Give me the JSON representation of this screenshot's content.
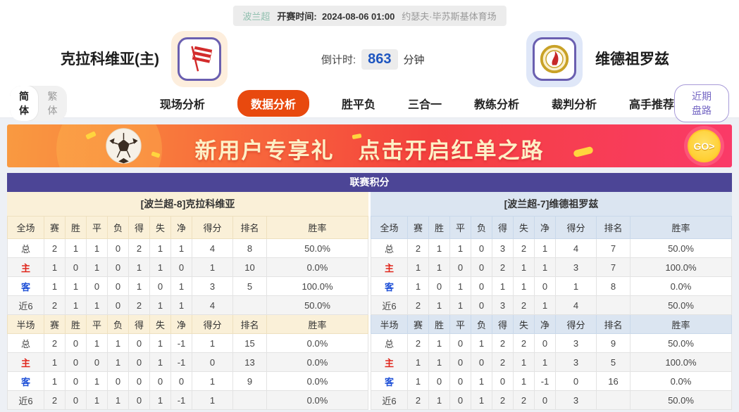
{
  "top_bar": {
    "league": "波兰超",
    "kickoff_label": "开赛时间:",
    "kickoff_time": "2024-08-06 01:00",
    "venue": "约瑟夫·毕苏斯基体育场"
  },
  "header": {
    "home_team": "克拉科维亚(主)",
    "away_team": "维德祖罗兹",
    "countdown_label": "倒计时:",
    "countdown_value": "863",
    "countdown_unit": "分钟"
  },
  "nav": {
    "lang": [
      "简体",
      "繁体"
    ],
    "tabs": [
      {
        "label": "现场分析",
        "active": false
      },
      {
        "label": "数据分析",
        "active": true
      },
      {
        "label": "胜平负",
        "active": false
      },
      {
        "label": "三合一",
        "active": false
      },
      {
        "label": "教练分析",
        "active": false
      },
      {
        "label": "裁判分析",
        "active": false
      },
      {
        "label": "高手推荐",
        "active": false
      }
    ],
    "recent_button": "近期盘路"
  },
  "banner": {
    "text1": "新用户专享礼",
    "text2": "点击开启红单之路",
    "go_label": "GO>"
  },
  "colors": {
    "accent_purple": "#4c4596",
    "active_tab_orange": "#e8490e",
    "home_header_bg": "#faf0d8",
    "away_header_bg": "#dbe5f1",
    "home_label_red": "#e0251b",
    "away_label_blue": "#1d4fd7",
    "countdown_blue": "#1d55c0"
  },
  "table": {
    "title": "联赛积分",
    "home": {
      "section_title": "[波兰超-8]克拉科维亚",
      "full_header": [
        "全场",
        "赛",
        "胜",
        "平",
        "负",
        "得",
        "失",
        "净",
        "得分",
        "排名",
        "胜率"
      ],
      "full_rows": [
        [
          "总",
          "2",
          "1",
          "1",
          "0",
          "2",
          "1",
          "1",
          "4",
          "8",
          "50.0%"
        ],
        [
          "主",
          "1",
          "0",
          "1",
          "0",
          "1",
          "1",
          "0",
          "1",
          "10",
          "0.0%"
        ],
        [
          "客",
          "1",
          "1",
          "0",
          "0",
          "1",
          "0",
          "1",
          "3",
          "5",
          "100.0%"
        ],
        [
          "近6",
          "2",
          "1",
          "1",
          "0",
          "2",
          "1",
          "1",
          "4",
          "",
          "50.0%"
        ]
      ],
      "half_header": [
        "半场",
        "赛",
        "胜",
        "平",
        "负",
        "得",
        "失",
        "净",
        "得分",
        "排名",
        "胜率"
      ],
      "half_rows": [
        [
          "总",
          "2",
          "0",
          "1",
          "1",
          "0",
          "1",
          "-1",
          "1",
          "15",
          "0.0%"
        ],
        [
          "主",
          "1",
          "0",
          "0",
          "1",
          "0",
          "1",
          "-1",
          "0",
          "13",
          "0.0%"
        ],
        [
          "客",
          "1",
          "0",
          "1",
          "0",
          "0",
          "0",
          "0",
          "1",
          "9",
          "0.0%"
        ],
        [
          "近6",
          "2",
          "0",
          "1",
          "1",
          "0",
          "1",
          "-1",
          "1",
          "",
          "0.0%"
        ]
      ]
    },
    "away": {
      "section_title": "[波兰超-7]维德祖罗兹",
      "full_header": [
        "全场",
        "赛",
        "胜",
        "平",
        "负",
        "得",
        "失",
        "净",
        "得分",
        "排名",
        "胜率"
      ],
      "full_rows": [
        [
          "总",
          "2",
          "1",
          "1",
          "0",
          "3",
          "2",
          "1",
          "4",
          "7",
          "50.0%"
        ],
        [
          "主",
          "1",
          "1",
          "0",
          "0",
          "2",
          "1",
          "1",
          "3",
          "7",
          "100.0%"
        ],
        [
          "客",
          "1",
          "0",
          "1",
          "0",
          "1",
          "1",
          "0",
          "1",
          "8",
          "0.0%"
        ],
        [
          "近6",
          "2",
          "1",
          "1",
          "0",
          "3",
          "2",
          "1",
          "4",
          "",
          "50.0%"
        ]
      ],
      "half_header": [
        "半场",
        "赛",
        "胜",
        "平",
        "负",
        "得",
        "失",
        "净",
        "得分",
        "排名",
        "胜率"
      ],
      "half_rows": [
        [
          "总",
          "2",
          "1",
          "0",
          "1",
          "2",
          "2",
          "0",
          "3",
          "9",
          "50.0%"
        ],
        [
          "主",
          "1",
          "1",
          "0",
          "0",
          "2",
          "1",
          "1",
          "3",
          "5",
          "100.0%"
        ],
        [
          "客",
          "1",
          "0",
          "0",
          "1",
          "0",
          "1",
          "-1",
          "0",
          "16",
          "0.0%"
        ],
        [
          "近6",
          "2",
          "1",
          "0",
          "1",
          "2",
          "2",
          "0",
          "3",
          "",
          "50.0%"
        ]
      ]
    }
  }
}
